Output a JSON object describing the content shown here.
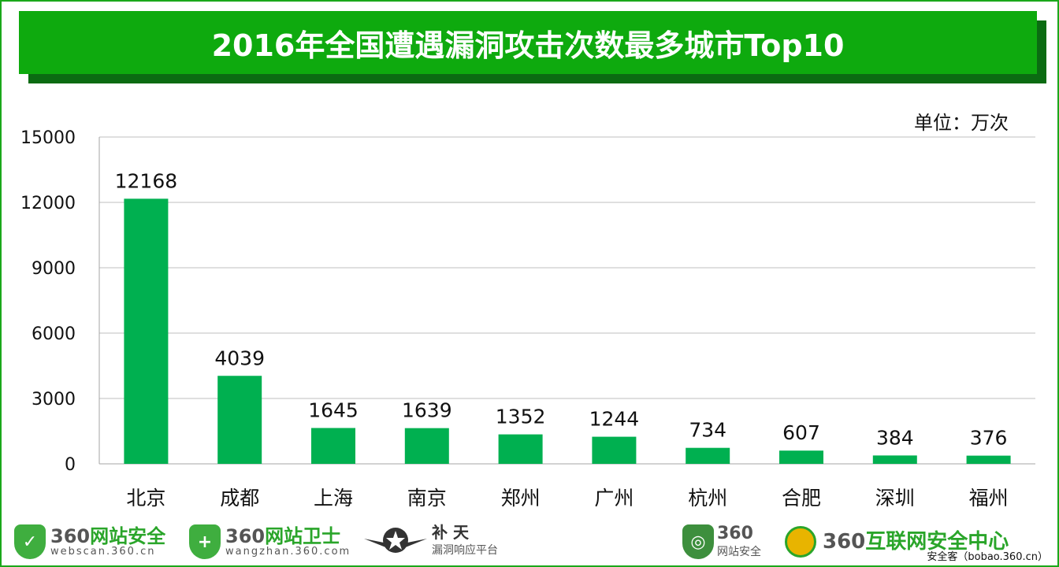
{
  "title": "2016年全国遭遇漏洞攻击次数最多城市Top10",
  "unit_label": "单位：万次",
  "colors": {
    "bar": "#00b050",
    "title_bg": "#0eaa0e",
    "title_shadow": "#0b6b12",
    "grid": "#bfbfbf"
  },
  "chart_data": {
    "type": "bar",
    "categories": [
      "北京",
      "成都",
      "上海",
      "南京",
      "郑州",
      "广州",
      "杭州",
      "合肥",
      "深圳",
      "福州"
    ],
    "values": [
      12168,
      4039,
      1645,
      1639,
      1352,
      1244,
      734,
      607,
      384,
      376
    ],
    "yticks": [
      "0",
      "3000",
      "6000",
      "9000",
      "12000",
      "15000"
    ],
    "ylim": [
      0,
      15000
    ],
    "grid": true,
    "data_labels": true
  },
  "footer": {
    "logos": [
      {
        "icon": "shield-check-icon",
        "main_prefix": "360",
        "main_suffix": "网站安全",
        "sub": "webscan.360.cn"
      },
      {
        "icon": "shield-plus-icon",
        "main_prefix": "360",
        "main_suffix": "网站卫士",
        "sub": "wangzhan.360.com"
      },
      {
        "icon": "star-wings-icon",
        "main": "补 天",
        "sub": "漏洞响应平台"
      },
      {
        "icon": "shield-globe-icon",
        "main_prefix": "360",
        "main_suffix": "网站安全"
      },
      {
        "icon": "emblem-icon",
        "main_prefix": "360",
        "main_suffix": "互联网安全中心"
      }
    ],
    "credit": "安全客（bobao.360.cn）"
  }
}
